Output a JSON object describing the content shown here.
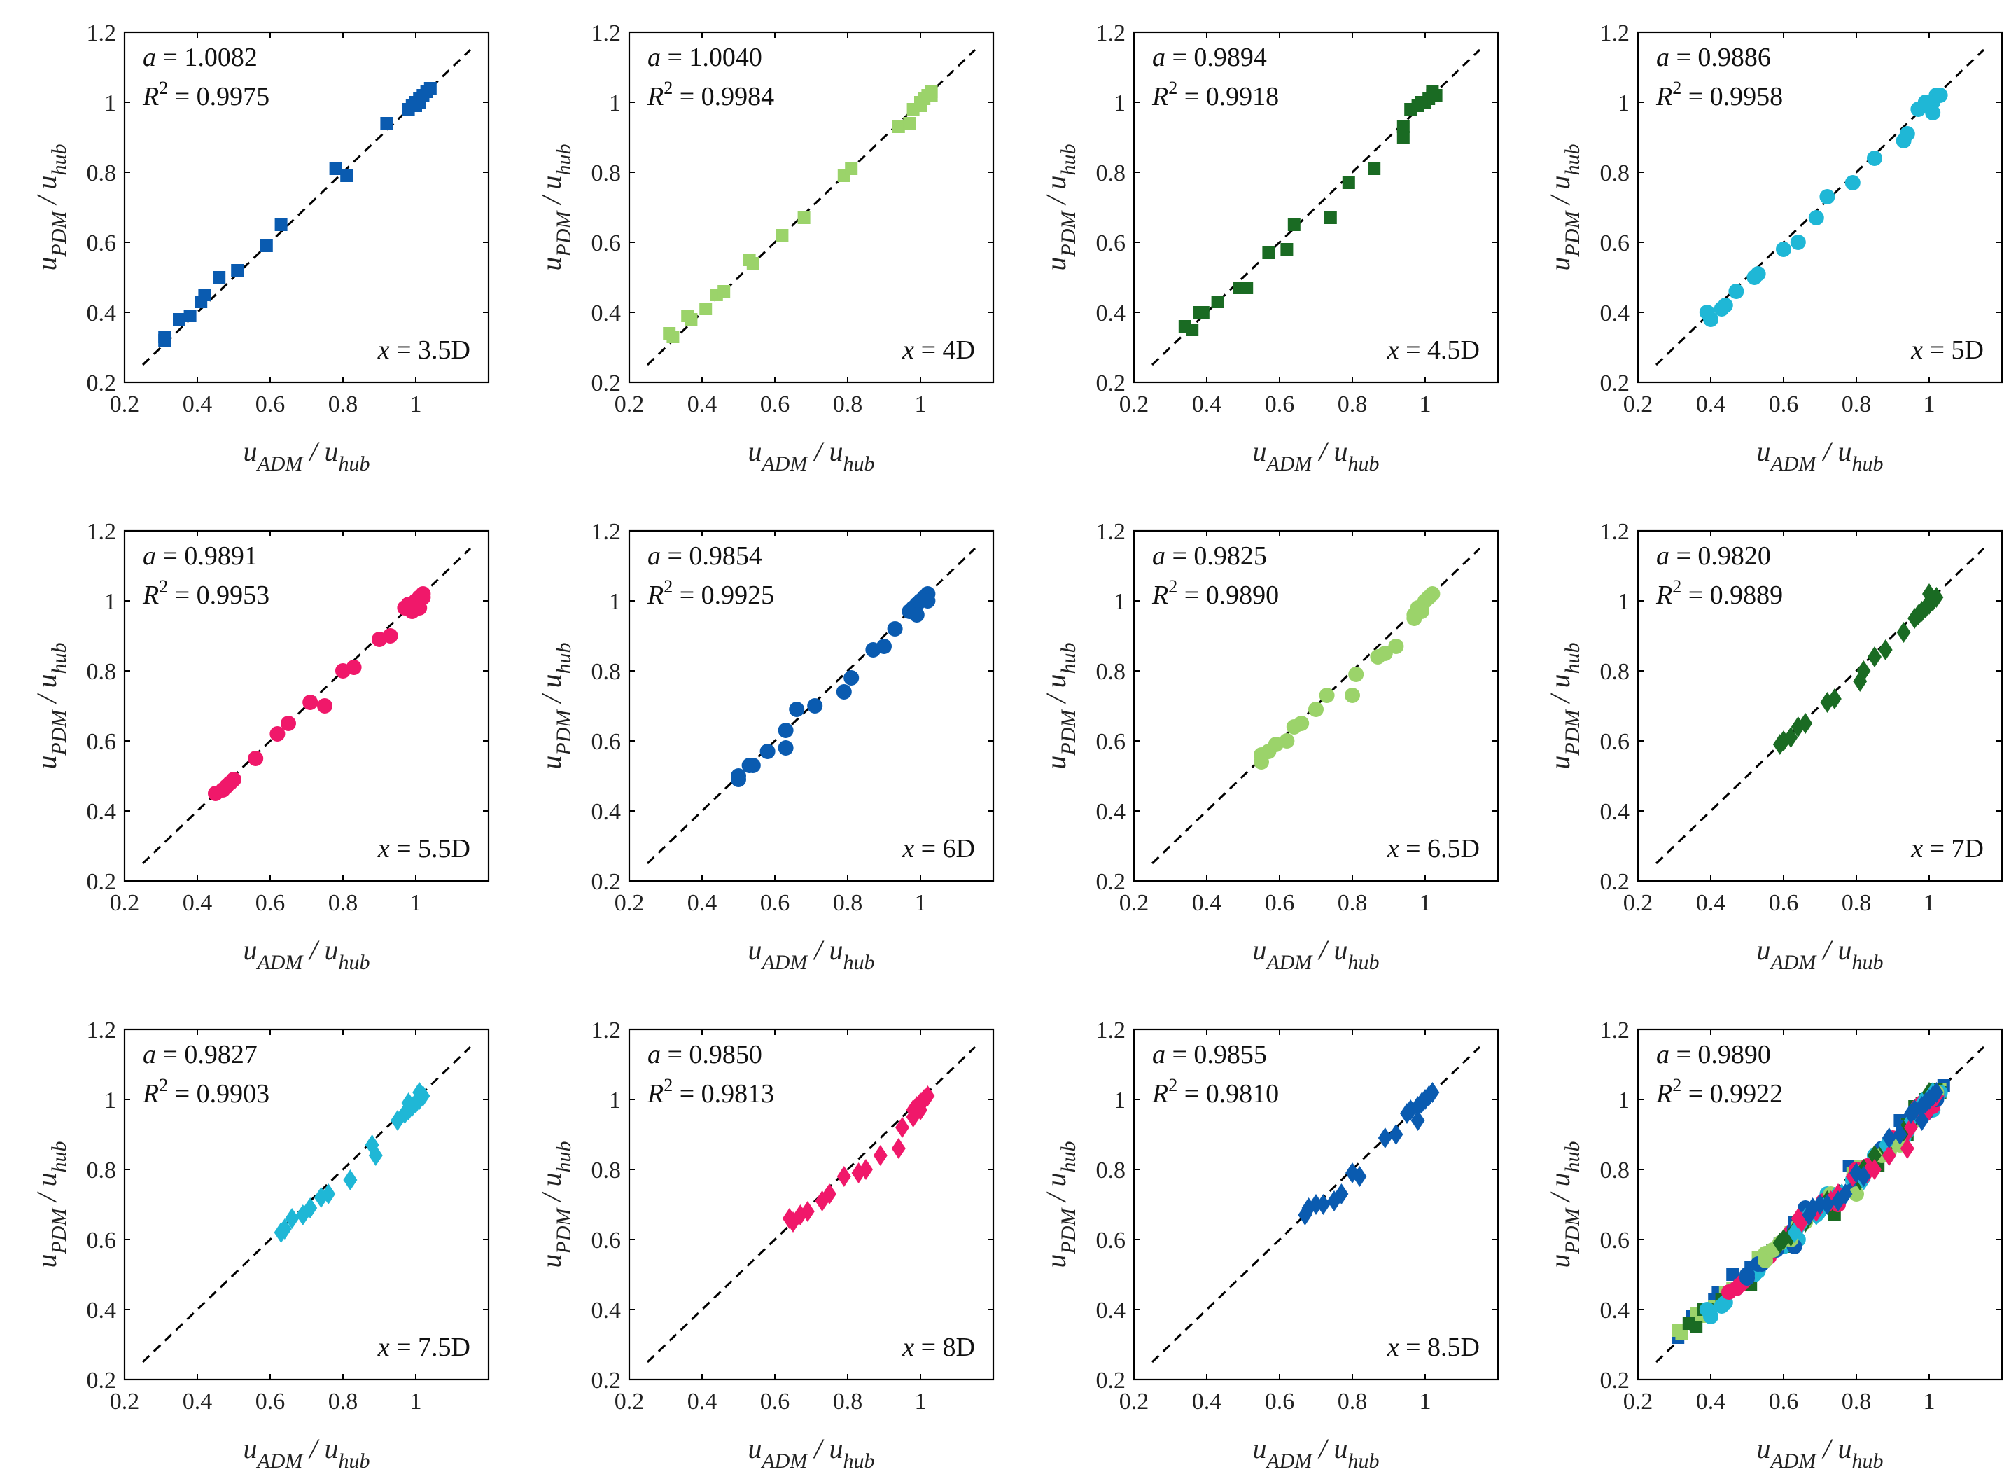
{
  "chart_data": [
    {
      "type": "scatter",
      "marker": "square",
      "color": "#0a5bb0",
      "a": "1.0082",
      "r2": "0.9975",
      "position": "3.5D",
      "xlabel": "u_ADM / u_hub",
      "ylabel": "u_PDM / u_hub",
      "xlim": [
        0.2,
        1.2
      ],
      "ylim": [
        0.2,
        1.2
      ],
      "x": [
        0.31,
        0.31,
        0.35,
        0.38,
        0.41,
        0.42,
        0.46,
        0.51,
        0.59,
        0.63,
        0.78,
        0.81,
        0.92,
        0.98,
        0.99,
        1.0,
        1.01,
        1.02,
        1.03,
        1.04,
        1.01,
        1.0,
        1.02
      ],
      "y": [
        0.33,
        0.32,
        0.38,
        0.39,
        0.43,
        0.45,
        0.5,
        0.52,
        0.59,
        0.65,
        0.81,
        0.79,
        0.94,
        0.98,
        0.99,
        1.0,
        1.01,
        1.02,
        1.03,
        1.04,
        1.0,
        0.99,
        1.02
      ]
    },
    {
      "type": "scatter",
      "marker": "square",
      "color": "#9bd36a",
      "a": "1.0040",
      "r2": "0.9984",
      "position": "4D",
      "xlabel": "u_ADM / u_hub",
      "ylabel": "u_PDM / u_hub",
      "xlim": [
        0.2,
        1.2
      ],
      "ylim": [
        0.2,
        1.2
      ],
      "x": [
        0.31,
        0.32,
        0.36,
        0.37,
        0.41,
        0.44,
        0.46,
        0.53,
        0.54,
        0.62,
        0.68,
        0.79,
        0.81,
        0.94,
        0.97,
        0.98,
        1.0,
        1.01,
        1.02,
        1.03,
        1.03,
        1.0
      ],
      "y": [
        0.34,
        0.33,
        0.39,
        0.38,
        0.41,
        0.45,
        0.46,
        0.55,
        0.54,
        0.62,
        0.67,
        0.79,
        0.81,
        0.93,
        0.94,
        0.98,
        1.0,
        1.01,
        1.02,
        1.03,
        1.02,
        0.99
      ]
    },
    {
      "type": "scatter",
      "marker": "square",
      "color": "#1a6b23",
      "a": "0.9894",
      "r2": "0.9918",
      "position": "4.5D",
      "xlabel": "u_ADM / u_hub",
      "ylabel": "u_PDM / u_hub",
      "xlim": [
        0.2,
        1.2
      ],
      "ylim": [
        0.2,
        1.2
      ],
      "x": [
        0.34,
        0.36,
        0.38,
        0.39,
        0.43,
        0.49,
        0.51,
        0.57,
        0.62,
        0.64,
        0.74,
        0.79,
        0.86,
        0.94,
        0.94,
        0.96,
        0.98,
        1.0,
        1.01,
        1.02,
        1.03,
        1.02,
        0.99
      ],
      "y": [
        0.36,
        0.35,
        0.4,
        0.4,
        0.43,
        0.47,
        0.47,
        0.57,
        0.58,
        0.65,
        0.67,
        0.77,
        0.81,
        0.93,
        0.9,
        0.98,
        0.99,
        1.0,
        1.01,
        1.02,
        1.02,
        1.03,
        1.0
      ]
    },
    {
      "type": "scatter",
      "marker": "circle",
      "color": "#1fb7d6",
      "a": "0.9886",
      "r2": "0.9958",
      "position": "5D",
      "xlabel": "u_ADM / u_hub",
      "ylabel": "u_PDM / u_hub",
      "xlim": [
        0.2,
        1.2
      ],
      "ylim": [
        0.2,
        1.2
      ],
      "x": [
        0.39,
        0.4,
        0.43,
        0.44,
        0.47,
        0.52,
        0.53,
        0.6,
        0.64,
        0.69,
        0.72,
        0.79,
        0.85,
        0.93,
        0.94,
        0.97,
        1.0,
        1.01,
        1.02,
        1.03,
        0.99,
        1.01
      ],
      "y": [
        0.4,
        0.38,
        0.41,
        0.42,
        0.46,
        0.5,
        0.51,
        0.58,
        0.6,
        0.67,
        0.73,
        0.77,
        0.84,
        0.89,
        0.91,
        0.98,
        0.99,
        1.0,
        1.02,
        1.02,
        1.0,
        0.97
      ]
    },
    {
      "type": "scatter",
      "marker": "circle",
      "color": "#f0186a",
      "a": "0.9891",
      "r2": "0.9953",
      "position": "5.5D",
      "xlabel": "u_ADM / u_hub",
      "ylabel": "u_PDM / u_hub",
      "xlim": [
        0.2,
        1.2
      ],
      "ylim": [
        0.2,
        1.2
      ],
      "x": [
        0.45,
        0.47,
        0.48,
        0.49,
        0.5,
        0.56,
        0.62,
        0.65,
        0.71,
        0.75,
        0.8,
        0.83,
        0.9,
        0.93,
        0.97,
        0.98,
        1.0,
        1.01,
        1.02,
        1.02,
        1.01,
        0.99
      ],
      "y": [
        0.45,
        0.46,
        0.47,
        0.48,
        0.49,
        0.55,
        0.62,
        0.65,
        0.71,
        0.7,
        0.8,
        0.81,
        0.89,
        0.9,
        0.98,
        0.99,
        1.0,
        1.01,
        1.02,
        1.01,
        0.98,
        0.97
      ]
    },
    {
      "type": "scatter",
      "marker": "circle",
      "color": "#0a5bb0",
      "a": "0.9854",
      "r2": "0.9925",
      "position": "6D",
      "xlabel": "u_ADM / u_hub",
      "ylabel": "u_PDM / u_hub",
      "xlim": [
        0.2,
        1.2
      ],
      "ylim": [
        0.2,
        1.2
      ],
      "x": [
        0.5,
        0.5,
        0.53,
        0.54,
        0.58,
        0.63,
        0.63,
        0.66,
        0.71,
        0.79,
        0.81,
        0.87,
        0.9,
        0.93,
        0.97,
        0.98,
        0.99,
        1.0,
        1.01,
        1.02,
        1.02,
        0.99
      ],
      "y": [
        0.5,
        0.49,
        0.53,
        0.53,
        0.57,
        0.58,
        0.63,
        0.69,
        0.7,
        0.74,
        0.78,
        0.86,
        0.87,
        0.92,
        0.97,
        0.98,
        0.99,
        1.0,
        1.01,
        1.02,
        1.0,
        0.96
      ]
    },
    {
      "type": "scatter",
      "marker": "circle",
      "color": "#9bd36a",
      "a": "0.9825",
      "r2": "0.9890",
      "position": "6.5D",
      "xlabel": "u_ADM / u_hub",
      "ylabel": "u_PDM / u_hub",
      "xlim": [
        0.2,
        1.2
      ],
      "ylim": [
        0.2,
        1.2
      ],
      "x": [
        0.55,
        0.55,
        0.57,
        0.59,
        0.62,
        0.64,
        0.66,
        0.7,
        0.73,
        0.8,
        0.81,
        0.87,
        0.89,
        0.92,
        0.97,
        0.98,
        0.99,
        1.0,
        1.01,
        1.02,
        0.97,
        0.99
      ],
      "y": [
        0.56,
        0.54,
        0.57,
        0.59,
        0.6,
        0.64,
        0.65,
        0.69,
        0.73,
        0.73,
        0.79,
        0.84,
        0.85,
        0.87,
        0.96,
        0.98,
        0.98,
        1.0,
        1.01,
        1.02,
        0.95,
        0.97
      ]
    },
    {
      "type": "scatter",
      "marker": "diamond",
      "color": "#1a6b23",
      "a": "0.9820",
      "r2": "0.9889",
      "position": "7D",
      "xlabel": "u_ADM / u_hub",
      "ylabel": "u_PDM / u_hub",
      "xlim": [
        0.2,
        1.2
      ],
      "ylim": [
        0.2,
        1.2
      ],
      "x": [
        0.59,
        0.6,
        0.62,
        0.64,
        0.66,
        0.72,
        0.74,
        0.81,
        0.82,
        0.85,
        0.88,
        0.93,
        0.96,
        0.98,
        0.99,
        1.0,
        1.01,
        1.02,
        0.97,
        1.0
      ],
      "y": [
        0.59,
        0.6,
        0.61,
        0.64,
        0.65,
        0.71,
        0.72,
        0.77,
        0.8,
        0.84,
        0.86,
        0.91,
        0.95,
        0.97,
        0.98,
        0.99,
        1.0,
        1.01,
        0.96,
        1.02
      ]
    },
    {
      "type": "scatter",
      "marker": "diamond",
      "color": "#1fb7d6",
      "a": "0.9827",
      "r2": "0.9903",
      "position": "7.5D",
      "xlabel": "u_ADM / u_hub",
      "ylabel": "u_PDM / u_hub",
      "xlim": [
        0.2,
        1.2
      ],
      "ylim": [
        0.2,
        1.2
      ],
      "x": [
        0.63,
        0.64,
        0.66,
        0.69,
        0.71,
        0.74,
        0.76,
        0.82,
        0.88,
        0.89,
        0.95,
        0.97,
        0.98,
        0.99,
        1.0,
        1.01,
        1.02,
        1.01,
        0.98
      ],
      "y": [
        0.62,
        0.63,
        0.66,
        0.67,
        0.69,
        0.72,
        0.73,
        0.77,
        0.87,
        0.84,
        0.94,
        0.96,
        0.97,
        0.98,
        0.99,
        1.0,
        1.01,
        1.02,
        0.99
      ]
    },
    {
      "type": "scatter",
      "marker": "diamond",
      "color": "#f0186a",
      "a": "0.9850",
      "r2": "0.9813",
      "position": "8D",
      "xlabel": "u_ADM / u_hub",
      "ylabel": "u_PDM / u_hub",
      "xlim": [
        0.2,
        1.2
      ],
      "ylim": [
        0.2,
        1.2
      ],
      "x": [
        0.64,
        0.65,
        0.67,
        0.69,
        0.73,
        0.75,
        0.79,
        0.83,
        0.85,
        0.89,
        0.94,
        0.95,
        0.98,
        0.99,
        1.0,
        1.01,
        1.02,
        0.98,
        1.0
      ],
      "y": [
        0.66,
        0.65,
        0.67,
        0.68,
        0.71,
        0.73,
        0.78,
        0.79,
        0.8,
        0.84,
        0.86,
        0.92,
        0.97,
        0.98,
        0.99,
        1.0,
        1.01,
        0.95,
        0.97
      ]
    },
    {
      "type": "scatter",
      "marker": "diamond",
      "color": "#0a5bb0",
      "a": "0.9855",
      "r2": "0.9810",
      "position": "8.5D",
      "xlabel": "u_ADM / u_hub",
      "ylabel": "u_PDM / u_hub",
      "xlim": [
        0.2,
        1.2
      ],
      "ylim": [
        0.2,
        1.2
      ],
      "x": [
        0.67,
        0.68,
        0.7,
        0.72,
        0.75,
        0.77,
        0.8,
        0.82,
        0.89,
        0.92,
        0.95,
        0.96,
        0.98,
        0.99,
        1.0,
        1.01,
        1.02,
        0.98
      ],
      "y": [
        0.67,
        0.69,
        0.7,
        0.7,
        0.71,
        0.73,
        0.79,
        0.78,
        0.89,
        0.9,
        0.96,
        0.97,
        0.98,
        0.99,
        1.0,
        1.01,
        1.02,
        0.94
      ]
    },
    {
      "type": "scatter",
      "marker": "mixed",
      "color": "#0a5bb0",
      "a": "0.9890",
      "r2": "0.9922",
      "position": "",
      "xlabel": "u_ADM / u_hub",
      "ylabel": "u_PDM / u_hub",
      "xlim": [
        0.2,
        1.2
      ],
      "ylim": [
        0.2,
        1.2
      ],
      "combined": true
    }
  ]
}
